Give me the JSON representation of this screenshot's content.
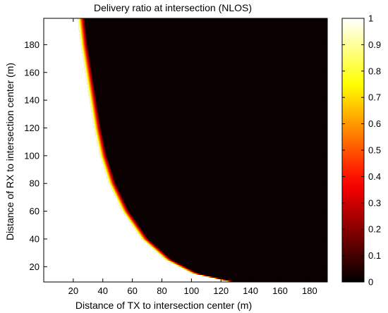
{
  "chart_data": {
    "type": "heatmap",
    "title": "Delivery ratio at intersection (NLOS)",
    "xlabel": "Distance of TX to intersection center (m)",
    "ylabel": "Distance of RX to intersection center (m)",
    "xlim": [
      0,
      192
    ],
    "ylim": [
      9,
      199
    ],
    "xticks": [
      20,
      40,
      60,
      80,
      100,
      120,
      140,
      160,
      180
    ],
    "yticks": [
      20,
      40,
      60,
      80,
      100,
      120,
      140,
      160,
      180
    ],
    "colormap": "hot",
    "colorbar": {
      "range": [
        0,
        1
      ],
      "ticks": [
        0,
        0.1,
        0.2,
        0.3,
        0.4,
        0.5,
        0.6,
        0.7,
        0.8,
        0.9,
        1
      ],
      "tick_labels": [
        "0",
        "0.1",
        "0.2",
        "0.3",
        "0.4",
        "0.5",
        "0.6",
        "0.7",
        "0.8",
        "0.9",
        "1"
      ]
    },
    "boundary": {
      "description_values": "delivery ratio ≈ 1 below the curve, ≈ 0 above it",
      "points": [
        {
          "x": 23,
          "y": 199
        },
        {
          "x": 25,
          "y": 180
        },
        {
          "x": 28,
          "y": 160
        },
        {
          "x": 31,
          "y": 140
        },
        {
          "x": 34,
          "y": 120
        },
        {
          "x": 38,
          "y": 100
        },
        {
          "x": 44,
          "y": 80
        },
        {
          "x": 53,
          "y": 60
        },
        {
          "x": 66,
          "y": 40
        },
        {
          "x": 82,
          "y": 25
        },
        {
          "x": 100,
          "y": 15
        },
        {
          "x": 125,
          "y": 9
        }
      ]
    }
  }
}
